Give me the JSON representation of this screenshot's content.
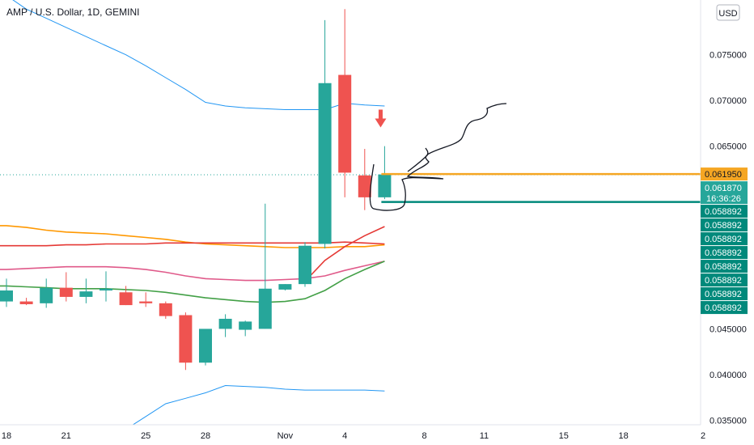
{
  "header": {
    "title": "AMP / U.S. Dollar, 1D, GEMINI",
    "currency": "USD"
  },
  "colors": {
    "up": "#26a69a",
    "down": "#ef5350",
    "bb_band": "#2196f3",
    "ma_orange": "#ff9800",
    "ma_red": "#e53935",
    "ma_pink": "#e05a8a",
    "ma_green": "#43a047",
    "line_orange": "#f5a623",
    "line_teal": "#00897b"
  },
  "chart_data": {
    "type": "candlestick",
    "x": [
      "Oct 18",
      "Oct 19",
      "Oct 20",
      "Oct 21",
      "Oct 22",
      "Oct 23",
      "Oct 24",
      "Oct 25",
      "Oct 26",
      "Oct 27",
      "Oct 28",
      "Oct 29",
      "Oct 30",
      "Oct 31",
      "Nov 1",
      "Nov 2",
      "Nov 3",
      "Nov 4",
      "Nov 5",
      "Nov 6"
    ],
    "candles": [
      {
        "o": 0.048,
        "h": 0.0505,
        "l": 0.0474,
        "c": 0.0492
      },
      {
        "o": 0.048,
        "h": 0.0484,
        "l": 0.0476,
        "c": 0.0477
      },
      {
        "o": 0.0478,
        "h": 0.0505,
        "l": 0.0473,
        "c": 0.0495
      },
      {
        "o": 0.0495,
        "h": 0.0512,
        "l": 0.048,
        "c": 0.0485
      },
      {
        "o": 0.0485,
        "h": 0.0505,
        "l": 0.0478,
        "c": 0.0491
      },
      {
        "o": 0.0492,
        "h": 0.0513,
        "l": 0.048,
        "c": 0.0494
      },
      {
        "o": 0.049,
        "h": 0.0497,
        "l": 0.0476,
        "c": 0.0476
      },
      {
        "o": 0.048,
        "h": 0.049,
        "l": 0.0474,
        "c": 0.0478
      },
      {
        "o": 0.0478,
        "h": 0.048,
        "l": 0.0461,
        "c": 0.0464
      },
      {
        "o": 0.0465,
        "h": 0.0468,
        "l": 0.0405,
        "c": 0.0413
      },
      {
        "o": 0.0413,
        "h": 0.045,
        "l": 0.041,
        "c": 0.045
      },
      {
        "o": 0.045,
        "h": 0.0466,
        "l": 0.0441,
        "c": 0.0461
      },
      {
        "o": 0.0449,
        "h": 0.0459,
        "l": 0.0442,
        "c": 0.0458
      },
      {
        "o": 0.045,
        "h": 0.0587,
        "l": 0.045,
        "c": 0.0494
      },
      {
        "o": 0.0493,
        "h": 0.0499,
        "l": 0.0492,
        "c": 0.0499
      },
      {
        "o": 0.0499,
        "h": 0.0545,
        "l": 0.0496,
        "c": 0.0541
      },
      {
        "o": 0.0543,
        "h": 0.0788,
        "l": 0.0538,
        "c": 0.0719
      },
      {
        "o": 0.0728,
        "h": 0.08,
        "l": 0.0594,
        "c": 0.0621
      },
      {
        "o": 0.0618,
        "h": 0.0647,
        "l": 0.058,
        "c": 0.0594
      },
      {
        "o": 0.0594,
        "h": 0.065,
        "l": 0.0592,
        "c": 0.0619
      }
    ],
    "indicators": [
      {
        "role": "bb_upper",
        "color_key": "bb_band",
        "values": [
          0.0815,
          0.08,
          0.079,
          0.078,
          0.077,
          0.076,
          0.075,
          0.0738,
          0.0725,
          0.0712,
          0.0698,
          0.0694,
          0.0692,
          0.0691,
          0.069,
          0.069,
          0.069,
          0.0697,
          0.0695,
          0.0694
        ]
      },
      {
        "role": "bb_lower",
        "color_key": "bb_band",
        "values": [
          0.0343,
          0.0343,
          0.0342,
          0.034,
          0.0339,
          0.0338,
          0.034,
          0.0354,
          0.0368,
          0.0374,
          0.038,
          0.0388,
          0.0387,
          0.0386,
          0.0384,
          0.0383,
          0.0383,
          0.0383,
          0.0383,
          0.0382
        ]
      },
      {
        "role": "ma_orange",
        "color_key": "ma_orange",
        "values": [
          0.0563,
          0.0561,
          0.0558,
          0.0556,
          0.0555,
          0.0554,
          0.0552,
          0.055,
          0.0548,
          0.0545,
          0.0543,
          0.0542,
          0.0541,
          0.054,
          0.0539,
          0.0539,
          0.0539,
          0.054,
          0.054,
          0.0542
        ]
      },
      {
        "role": "ma_red",
        "color_key": "ma_red",
        "values": [
          0.0541,
          0.0541,
          0.0541,
          0.0542,
          0.0542,
          0.0543,
          0.0543,
          0.0543,
          0.0544,
          0.0544,
          0.0544,
          0.0544,
          0.0544,
          0.0544,
          0.0544,
          0.0544,
          0.0544,
          0.0545,
          0.0544,
          0.0543
        ]
      },
      {
        "role": "ma_pink",
        "color_key": "ma_pink",
        "values": [
          0.0515,
          0.0516,
          0.0517,
          0.0518,
          0.0518,
          0.0518,
          0.0517,
          0.0515,
          0.0512,
          0.0508,
          0.0505,
          0.0504,
          0.0503,
          0.0503,
          0.0504,
          0.0505,
          0.0508,
          0.0514,
          0.0519,
          0.0524
        ]
      },
      {
        "role": "ma_green",
        "color_key": "ma_green",
        "values": [
          0.0497,
          0.0496,
          0.0495,
          0.0494,
          0.0494,
          0.0494,
          0.0493,
          0.0492,
          0.049,
          0.0487,
          0.0484,
          0.0482,
          0.048,
          0.0479,
          0.048,
          0.0483,
          0.0492,
          0.0505,
          0.0515,
          0.0524
        ]
      },
      {
        "role": "ma_fast_red",
        "color_key": "ma_red",
        "values": [
          null,
          null,
          null,
          null,
          null,
          null,
          null,
          null,
          null,
          null,
          null,
          null,
          null,
          null,
          null,
          0.0502,
          0.0525,
          0.054,
          0.0552,
          0.0562
        ]
      }
    ],
    "ylim": [
      0.0345,
      0.081
    ],
    "yticks": [
      {
        "value": 0.075,
        "label": "0.075000"
      },
      {
        "value": 0.07,
        "label": "0.070000"
      },
      {
        "value": 0.065,
        "label": "0.065000"
      },
      {
        "value": 0.045,
        "label": "0.045000"
      },
      {
        "value": 0.04,
        "label": "0.040000"
      },
      {
        "value": 0.035,
        "label": "0.035000"
      }
    ],
    "xticks": [
      {
        "index": 0,
        "label": "18"
      },
      {
        "index": 3,
        "label": "21"
      },
      {
        "index": 7,
        "label": "25"
      },
      {
        "index": 10,
        "label": "28"
      },
      {
        "index": 14,
        "label": "Nov"
      },
      {
        "index": 17,
        "label": "4"
      },
      {
        "index": 21,
        "label": "8"
      },
      {
        "index": 24,
        "label": "11"
      },
      {
        "index": 28,
        "label": "15"
      },
      {
        "index": 31,
        "label": "18"
      },
      {
        "index": 35,
        "label": "2"
      }
    ],
    "price_tags": [
      {
        "value": 0.06195,
        "label": "0.061950",
        "color_key": "line_orange",
        "text_color": "#131722"
      },
      {
        "value": 0.06187,
        "label": "0.061870",
        "label2": "16:36:26",
        "color_key": "up",
        "text_color": "#ffffff"
      },
      {
        "value": 0.058892,
        "label": "0.058892",
        "color_key": "line_teal",
        "text_color": "#ffffff"
      },
      {
        "value": 0.058892,
        "label": "0.058892",
        "color_key": "line_teal",
        "text_color": "#ffffff"
      },
      {
        "value": 0.058892,
        "label": "0.058892",
        "color_key": "line_teal",
        "text_color": "#ffffff"
      },
      {
        "value": 0.058892,
        "label": "0.058892",
        "color_key": "line_teal",
        "text_color": "#ffffff"
      },
      {
        "value": 0.058892,
        "label": "0.058892",
        "color_key": "line_teal",
        "text_color": "#ffffff"
      },
      {
        "value": 0.058892,
        "label": "0.058892",
        "color_key": "line_teal",
        "text_color": "#ffffff"
      },
      {
        "value": 0.058892,
        "label": "0.058892",
        "color_key": "line_teal",
        "text_color": "#ffffff"
      },
      {
        "value": 0.058892,
        "label": "0.058892",
        "color_key": "line_teal",
        "text_color": "#ffffff"
      }
    ],
    "horizontal_lines": [
      {
        "value": 0.06195,
        "from_index": 19,
        "color_key": "line_orange"
      },
      {
        "value": 0.058892,
        "from_index": 19,
        "color_key": "line_teal"
      }
    ],
    "annotations": [
      {
        "type": "arrow-down",
        "index": 18.8,
        "value": 0.069,
        "color_key": "down"
      },
      {
        "type": "freehand-projection",
        "color": "#131722"
      }
    ],
    "grid": false
  }
}
